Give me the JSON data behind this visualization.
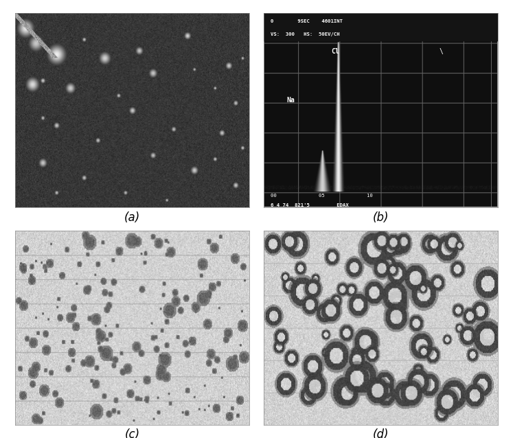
{
  "figure_bg": "#ffffff",
  "label_fontsize": 12,
  "labels": [
    "(a)",
    "(b)",
    "(c)",
    "(d)"
  ],
  "panel_b_header1": "0        9SEC    4601INT",
  "panel_b_header2": "VS:  300   HS:  50EV/CH",
  "panel_b_cl_label": "Cl",
  "panel_b_na_label": "Na",
  "panel_b_bottom1": "00              05              10",
  "panel_b_bottom2": "6 4 74  821'5         EDAX",
  "panel_b_backslash": "\\",
  "fig_width": 7.47,
  "fig_height": 6.38,
  "dpi": 100
}
